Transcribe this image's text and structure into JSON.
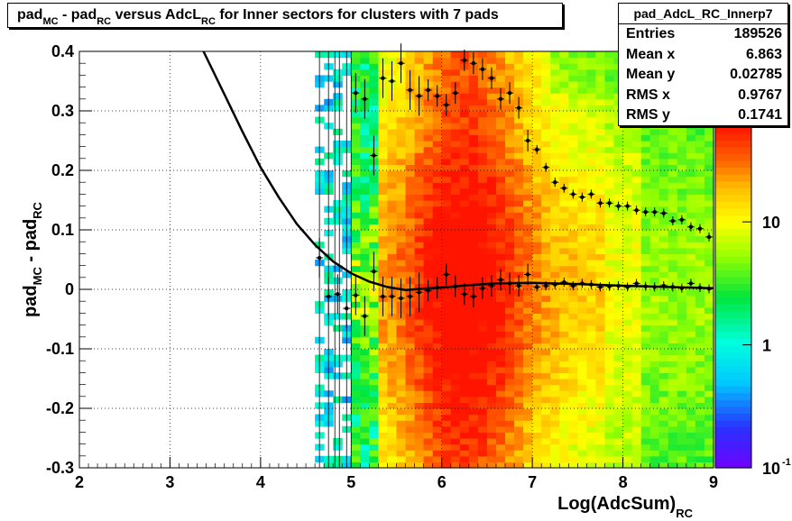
{
  "colors": {
    "marker": "#000000",
    "frame": "#000000"
  },
  "title_parts": {
    "a": "pad",
    "b": "MC",
    "c": " - pad",
    "d": "RC",
    "e": " versus AdcL",
    "f": "RC",
    "g": " for Inner sectors for clusters with 7 pads"
  },
  "stats": {
    "name": "pad_AdcL_RC_Innerp7",
    "rows": [
      {
        "label": "Entries",
        "value": "189526"
      },
      {
        "label": "Mean x",
        "value": "6.863"
      },
      {
        "label": "Mean y",
        "value": "0.02785"
      },
      {
        "label": "RMS x",
        "value": "0.9767"
      },
      {
        "label": "RMS y",
        "value": "0.1741"
      }
    ]
  },
  "chart_data": {
    "type": "heatmap",
    "xlim": [
      2,
      9
    ],
    "ylim": [
      -0.3,
      0.4
    ],
    "x_ticks": [
      "2",
      "3",
      "4",
      "5",
      "6",
      "7",
      "8",
      "9"
    ],
    "y_ticks": [
      "-0.3",
      "-0.2",
      "-0.1",
      "0",
      "0.1",
      "0.2",
      "0.3",
      "0.4"
    ],
    "xlabel": {
      "main": "Log(AdcSum)",
      "sub": "RC"
    },
    "ylabel": {
      "a": "pad",
      "b": "MC",
      "c": " - pad",
      "d": "RC"
    },
    "z_scale": "log",
    "z_ticks": [
      {
        "label": "10",
        "exp": "-1",
        "value": 0.1
      },
      {
        "label": "1",
        "exp": "",
        "value": 1
      },
      {
        "label": "10",
        "exp": "",
        "value": 10
      }
    ],
    "z_range": [
      0.1,
      60
    ],
    "curve": {
      "type": "polynomial_fit",
      "points": [
        [
          3.37,
          0.4
        ],
        [
          3.6,
          0.328
        ],
        [
          3.8,
          0.265
        ],
        [
          4.0,
          0.205
        ],
        [
          4.2,
          0.155
        ],
        [
          4.4,
          0.11
        ],
        [
          4.6,
          0.075
        ],
        [
          4.8,
          0.047
        ],
        [
          5.0,
          0.027
        ],
        [
          5.2,
          0.013
        ],
        [
          5.4,
          0.004
        ],
        [
          5.6,
          -0.001
        ],
        [
          5.8,
          0.001
        ],
        [
          6.0,
          0.003
        ],
        [
          6.3,
          0.007
        ],
        [
          6.6,
          0.01
        ],
        [
          7.0,
          0.011
        ],
        [
          7.5,
          0.009
        ],
        [
          8.0,
          0.006
        ],
        [
          8.5,
          0.004
        ],
        [
          9.0,
          0.002
        ]
      ]
    },
    "profile_main": [
      [
        4.65,
        0.053
      ],
      [
        4.75,
        -0.012
      ],
      [
        4.85,
        -0.008
      ],
      [
        4.95,
        -0.032
      ],
      [
        5.05,
        -0.01
      ],
      [
        5.15,
        -0.045
      ],
      [
        5.25,
        0.03
      ],
      [
        5.35,
        -0.012
      ],
      [
        5.45,
        -0.012
      ],
      [
        5.55,
        -0.015
      ],
      [
        5.65,
        -0.012
      ],
      [
        5.75,
        -0.005
      ],
      [
        5.85,
        -0.002
      ],
      [
        5.95,
        0.003
      ],
      [
        6.05,
        0.025
      ],
      [
        6.15,
        0.005
      ],
      [
        6.25,
        -0.008
      ],
      [
        6.35,
        -0.012
      ],
      [
        6.45,
        0.002
      ],
      [
        6.55,
        0.006
      ],
      [
        6.65,
        0.016
      ],
      [
        6.75,
        0.01
      ],
      [
        6.85,
        0.006
      ],
      [
        6.95,
        0.025
      ],
      [
        7.05,
        0.004
      ],
      [
        7.15,
        0.006
      ],
      [
        7.25,
        0.008
      ],
      [
        7.35,
        0.012
      ],
      [
        7.45,
        0.006
      ],
      [
        7.55,
        0.01
      ],
      [
        7.65,
        0.008
      ],
      [
        7.75,
        0.004
      ],
      [
        7.85,
        0.005
      ],
      [
        7.95,
        0.006
      ],
      [
        8.05,
        0.004
      ],
      [
        8.15,
        0.01
      ],
      [
        8.25,
        0.005
      ],
      [
        8.35,
        0.004
      ],
      [
        8.45,
        0.006
      ],
      [
        8.55,
        0.004
      ],
      [
        8.65,
        0.002
      ],
      [
        8.75,
        0.01
      ],
      [
        8.85,
        0.003
      ],
      [
        8.95,
        0.001
      ]
    ],
    "profile_upper": [
      [
        5.05,
        0.33
      ],
      [
        5.15,
        0.32
      ],
      [
        5.25,
        0.225
      ],
      [
        5.35,
        0.355
      ],
      [
        5.45,
        0.35
      ],
      [
        5.55,
        0.38
      ],
      [
        5.65,
        0.335
      ],
      [
        5.75,
        0.325
      ],
      [
        5.85,
        0.335
      ],
      [
        5.95,
        0.325
      ],
      [
        6.05,
        0.31
      ],
      [
        6.15,
        0.33
      ],
      [
        6.25,
        0.385
      ],
      [
        6.35,
        0.38
      ],
      [
        6.45,
        0.37
      ],
      [
        6.55,
        0.355
      ],
      [
        6.65,
        0.32
      ],
      [
        6.75,
        0.33
      ],
      [
        6.85,
        0.305
      ],
      [
        6.95,
        0.25
      ],
      [
        7.05,
        0.235
      ],
      [
        7.15,
        0.205
      ],
      [
        7.25,
        0.18
      ],
      [
        7.35,
        0.17
      ],
      [
        7.45,
        0.16
      ],
      [
        7.55,
        0.155
      ],
      [
        7.65,
        0.16
      ],
      [
        7.75,
        0.145
      ],
      [
        7.85,
        0.145
      ],
      [
        7.95,
        0.14
      ],
      [
        8.05,
        0.14
      ],
      [
        8.15,
        0.133
      ],
      [
        8.25,
        0.13
      ],
      [
        8.35,
        0.13
      ],
      [
        8.45,
        0.128
      ],
      [
        8.55,
        0.115
      ],
      [
        8.65,
        0.117
      ],
      [
        8.75,
        0.105
      ],
      [
        8.85,
        0.102
      ],
      [
        8.95,
        0.088
      ]
    ]
  }
}
